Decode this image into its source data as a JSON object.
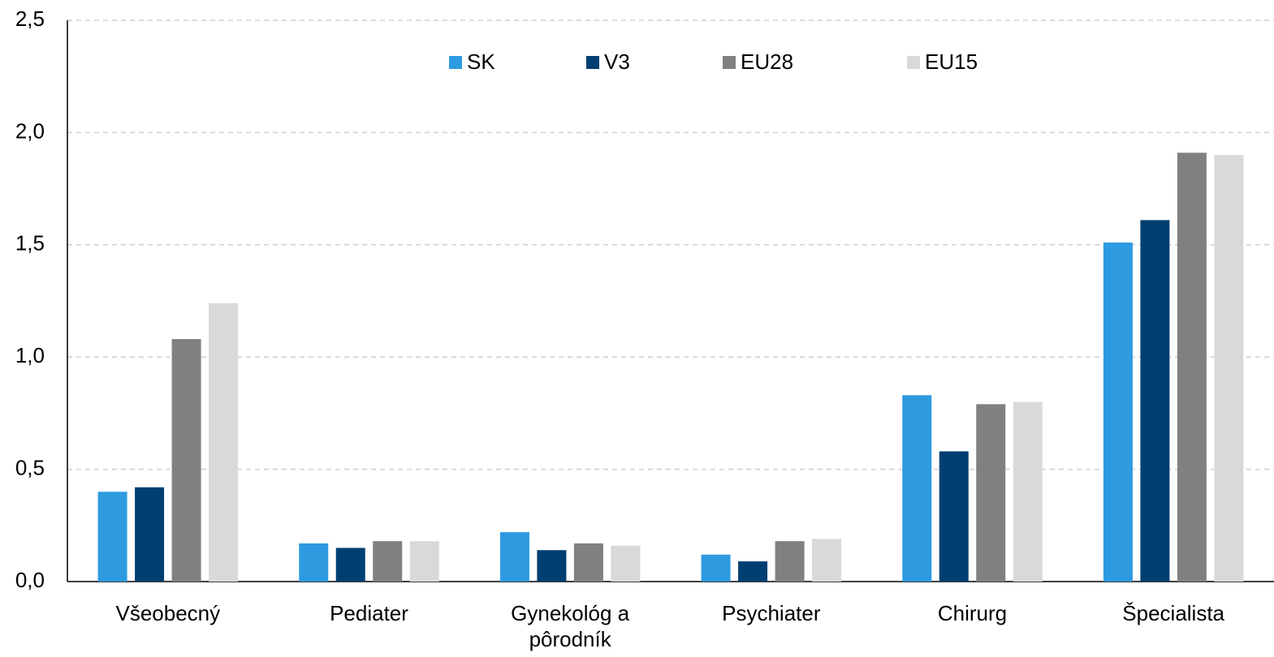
{
  "chart_data": {
    "type": "bar",
    "categories": [
      "Všeobecný",
      "Pediater",
      "Gynekológ a pôrodník",
      "Psychiater",
      "Chirurg",
      "Špecialista"
    ],
    "series": [
      {
        "name": "SK",
        "color": "#2e9ae0",
        "values": [
          0.4,
          0.17,
          0.22,
          0.12,
          0.83,
          1.51
        ]
      },
      {
        "name": "V3",
        "color": "#003f72",
        "values": [
          0.42,
          0.15,
          0.14,
          0.09,
          0.58,
          1.61
        ]
      },
      {
        "name": "EU28",
        "color": "#808080",
        "values": [
          1.08,
          0.18,
          0.17,
          0.18,
          0.79,
          1.91
        ]
      },
      {
        "name": "EU15",
        "color": "#d9d9d9",
        "values": [
          1.24,
          0.18,
          0.16,
          0.19,
          0.8,
          1.9
        ]
      }
    ],
    "ylim": [
      0,
      2.5
    ],
    "yticks": [
      {
        "value": 0,
        "label": "0,0"
      },
      {
        "value": 0.5,
        "label": "0,5"
      },
      {
        "value": 1,
        "label": "1,0"
      },
      {
        "value": 1.5,
        "label": "1,5"
      },
      {
        "value": 2,
        "label": "2,0"
      },
      {
        "value": 2.5,
        "label": "2,5"
      }
    ],
    "grid": true,
    "legend": "top"
  }
}
